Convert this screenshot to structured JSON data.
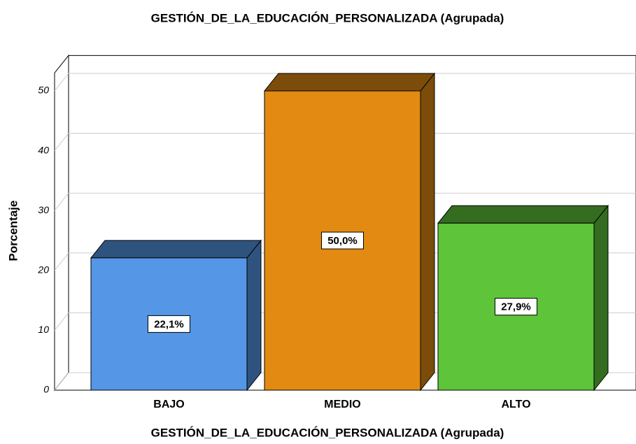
{
  "chart_data": {
    "type": "bar3d",
    "title": "GESTIÓN_DE_LA_EDUCACIÓN_PERSONALIZADA (Agrupada)",
    "x_label": "GESTIÓN_DE_LA_EDUCACIÓN_PERSONALIZADA (Agrupada)",
    "y_label": "Porcentaje",
    "categories": [
      "BAJO",
      "MEDIO",
      "ALTO"
    ],
    "values": [
      22.1,
      50.0,
      27.9
    ],
    "value_labels": [
      "22,1%",
      "50,0%",
      "27,9%"
    ],
    "colors": [
      "#5596e6",
      "#e28a12",
      "#5ec43a"
    ],
    "ylim": [
      0,
      53
    ],
    "yticks": [
      0,
      10,
      20,
      30,
      40,
      50
    ],
    "grid": true
  }
}
